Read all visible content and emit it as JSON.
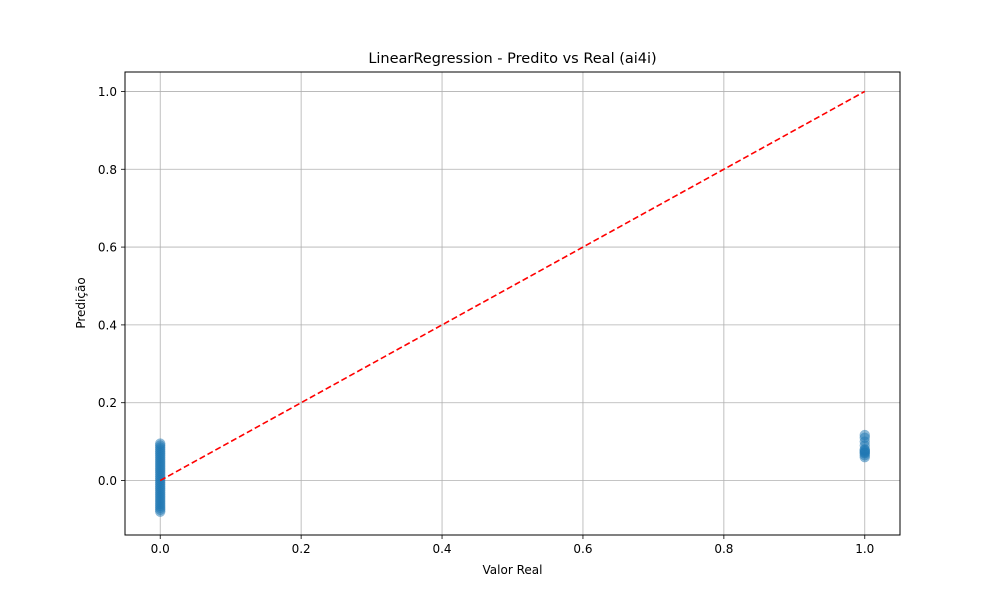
{
  "chart_data": {
    "type": "scatter",
    "title": "LinearRegression - Predito vs Real (ai4i)",
    "xlabel": "Valor Real",
    "ylabel": "Predição",
    "xlim": [
      -0.05,
      1.05
    ],
    "ylim": [
      -0.14,
      1.05
    ],
    "xticks": [
      0.0,
      0.2,
      0.4,
      0.6,
      0.8,
      1.0
    ],
    "xtick_labels": [
      "0.0",
      "0.2",
      "0.4",
      "0.6",
      "0.8",
      "1.0"
    ],
    "yticks": [
      0.0,
      0.2,
      0.4,
      0.6,
      0.8,
      1.0
    ],
    "ytick_labels": [
      "0.0",
      "0.2",
      "0.4",
      "0.6",
      "0.8",
      "1.0"
    ],
    "grid": true,
    "series": [
      {
        "type": "scatter",
        "color": "#1f77b4",
        "alpha": 0.5,
        "points": [
          [
            0,
            -0.08
          ],
          [
            0,
            -0.075
          ],
          [
            0,
            -0.07
          ],
          [
            0,
            -0.065
          ],
          [
            0,
            -0.06
          ],
          [
            0,
            -0.055
          ],
          [
            0,
            -0.05
          ],
          [
            0,
            -0.045
          ],
          [
            0,
            -0.04
          ],
          [
            0,
            -0.035
          ],
          [
            0,
            -0.03
          ],
          [
            0,
            -0.025
          ],
          [
            0,
            -0.02
          ],
          [
            0,
            -0.015
          ],
          [
            0,
            -0.01
          ],
          [
            0,
            -0.005
          ],
          [
            0,
            0.0
          ],
          [
            0,
            0.005
          ],
          [
            0,
            0.01
          ],
          [
            0,
            0.015
          ],
          [
            0,
            0.02
          ],
          [
            0,
            0.025
          ],
          [
            0,
            0.03
          ],
          [
            0,
            0.035
          ],
          [
            0,
            0.04
          ],
          [
            0,
            0.045
          ],
          [
            0,
            0.05
          ],
          [
            0,
            0.055
          ],
          [
            0,
            0.06
          ],
          [
            0,
            0.065
          ],
          [
            0,
            0.07
          ],
          [
            0,
            0.075
          ],
          [
            0,
            0.08
          ],
          [
            0,
            0.085
          ],
          [
            0,
            0.09
          ],
          [
            0,
            0.095
          ],
          [
            1,
            0.06
          ],
          [
            1,
            0.065
          ],
          [
            1,
            0.07
          ],
          [
            1,
            0.072
          ],
          [
            1,
            0.075
          ],
          [
            1,
            0.078
          ],
          [
            1,
            0.08
          ],
          [
            1,
            0.09
          ],
          [
            1,
            0.1
          ],
          [
            1,
            0.11
          ],
          [
            1,
            0.117
          ]
        ]
      },
      {
        "type": "line",
        "color": "#ff0000",
        "style": "dashed",
        "x": [
          0,
          1
        ],
        "y": [
          0,
          1
        ]
      }
    ]
  }
}
